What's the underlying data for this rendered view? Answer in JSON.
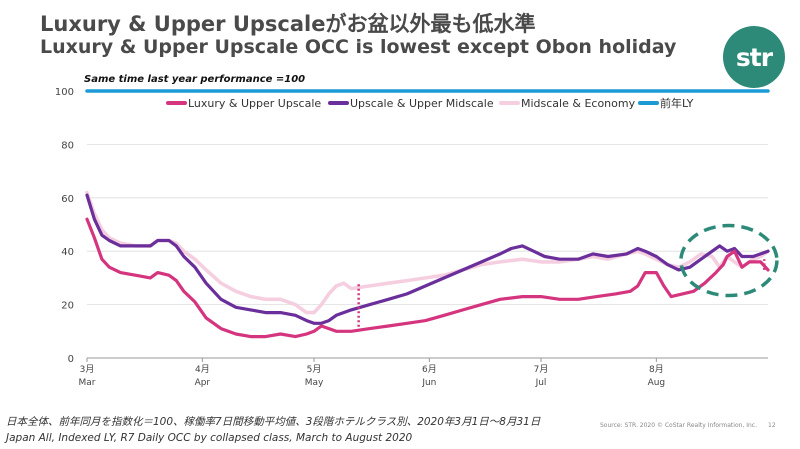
{
  "title_jp": "Luxury & Upper Upscaleがお盆以外最も低水準",
  "title_en": "Luxury & Upper Upscale OCC is lowest except Obon holiday",
  "logo_text": "str",
  "note": "Same time last year performance =100",
  "footer_jp": "日本全体、前年同月を指数化＝100、稼働率7日間移動平均値、3段階ホテルクラス別、2020年3月1日～8月31日",
  "footer_en": "Japan All, Indexed LY, R7 Daily OCC by collapsed class, March to August 2020",
  "source": "Source: STR. 2020 © CoStar Realty Information, Inc.",
  "page_number": "12",
  "colors": {
    "luxury": "#d4357e",
    "upscale": "#6a2f9b",
    "midscale": "#f5cfe0",
    "ly": "#1c9ad6",
    "annotation": "#2d8a78",
    "logo": "#2d8a78",
    "grid": "#dddddd"
  },
  "chart_data": {
    "type": "line",
    "title": "",
    "xlabel": "",
    "ylabel": "",
    "ylim": [
      0,
      100
    ],
    "yticks": [
      0,
      20,
      40,
      60,
      80,
      100
    ],
    "x_domain_days": [
      0,
      183
    ],
    "month_ticks": [
      {
        "day": 0,
        "top": "3月",
        "bottom": "Mar"
      },
      {
        "day": 31,
        "top": "4月",
        "bottom": "Apr"
      },
      {
        "day": 61,
        "top": "5月",
        "bottom": "May"
      },
      {
        "day": 92,
        "top": "6月",
        "bottom": "Jun"
      },
      {
        "day": 122,
        "top": "7月",
        "bottom": "Jul"
      },
      {
        "day": 153,
        "top": "8月",
        "bottom": "Aug"
      }
    ],
    "legend": [
      "Luxury & Upper Upscale",
      "Upscale & Upper Midscale",
      "Midscale & Economy",
      "前年LY"
    ],
    "legend_position": "top",
    "series": [
      {
        "name": "Luxury & Upper Upscale",
        "color_key": "luxury",
        "points": [
          [
            0,
            52
          ],
          [
            2,
            45
          ],
          [
            4,
            37
          ],
          [
            6,
            34
          ],
          [
            9,
            32
          ],
          [
            13,
            31
          ],
          [
            17,
            30
          ],
          [
            19,
            32
          ],
          [
            22,
            31
          ],
          [
            24,
            29
          ],
          [
            26,
            25
          ],
          [
            29,
            21
          ],
          [
            32,
            15
          ],
          [
            36,
            11
          ],
          [
            40,
            9
          ],
          [
            44,
            8
          ],
          [
            48,
            8
          ],
          [
            52,
            9
          ],
          [
            56,
            8
          ],
          [
            59,
            9
          ],
          [
            61,
            10
          ],
          [
            63,
            12
          ],
          [
            65,
            11
          ],
          [
            67,
            10
          ],
          [
            71,
            10
          ],
          [
            76,
            11
          ],
          [
            81,
            12
          ],
          [
            86,
            13
          ],
          [
            91,
            14
          ],
          [
            96,
            16
          ],
          [
            101,
            18
          ],
          [
            106,
            20
          ],
          [
            111,
            22
          ],
          [
            117,
            23
          ],
          [
            122,
            23
          ],
          [
            127,
            22
          ],
          [
            132,
            22
          ],
          [
            137,
            23
          ],
          [
            142,
            24
          ],
          [
            146,
            25
          ],
          [
            148,
            27
          ],
          [
            150,
            32
          ],
          [
            153,
            32
          ],
          [
            155,
            27
          ],
          [
            157,
            23
          ],
          [
            160,
            24
          ],
          [
            163,
            25
          ],
          [
            166,
            28
          ],
          [
            169,
            32
          ],
          [
            171,
            35
          ],
          [
            172,
            38
          ],
          [
            174,
            40
          ],
          [
            176,
            34
          ],
          [
            178,
            36
          ],
          [
            181,
            36
          ],
          [
            183,
            33
          ]
        ]
      },
      {
        "name": "Upscale & Upper Midscale",
        "color_key": "upscale",
        "points": [
          [
            0,
            61
          ],
          [
            2,
            52
          ],
          [
            4,
            46
          ],
          [
            6,
            44
          ],
          [
            9,
            42
          ],
          [
            13,
            42
          ],
          [
            17,
            42
          ],
          [
            19,
            44
          ],
          [
            22,
            44
          ],
          [
            24,
            42
          ],
          [
            26,
            38
          ],
          [
            29,
            34
          ],
          [
            32,
            28
          ],
          [
            36,
            22
          ],
          [
            40,
            19
          ],
          [
            44,
            18
          ],
          [
            48,
            17
          ],
          [
            52,
            17
          ],
          [
            56,
            16
          ],
          [
            59,
            14
          ],
          [
            61,
            13
          ],
          [
            63,
            13
          ],
          [
            65,
            14
          ],
          [
            67,
            16
          ],
          [
            71,
            18
          ],
          [
            76,
            20
          ],
          [
            81,
            22
          ],
          [
            86,
            24
          ],
          [
            91,
            27
          ],
          [
            96,
            30
          ],
          [
            101,
            33
          ],
          [
            106,
            36
          ],
          [
            111,
            39
          ],
          [
            114,
            41
          ],
          [
            117,
            42
          ],
          [
            120,
            40
          ],
          [
            123,
            38
          ],
          [
            127,
            37
          ],
          [
            132,
            37
          ],
          [
            136,
            39
          ],
          [
            140,
            38
          ],
          [
            145,
            39
          ],
          [
            148,
            41
          ],
          [
            150,
            40
          ],
          [
            153,
            38
          ],
          [
            156,
            35
          ],
          [
            159,
            33
          ],
          [
            162,
            34
          ],
          [
            165,
            37
          ],
          [
            168,
            40
          ],
          [
            170,
            42
          ],
          [
            172,
            40
          ],
          [
            174,
            41
          ],
          [
            176,
            38
          ],
          [
            179,
            38
          ],
          [
            181,
            39
          ],
          [
            183,
            40
          ]
        ]
      },
      {
        "name": "Midscale & Economy",
        "color_key": "midscale",
        "points": [
          [
            0,
            62
          ],
          [
            2,
            54
          ],
          [
            4,
            48
          ],
          [
            6,
            45
          ],
          [
            9,
            43
          ],
          [
            13,
            42
          ],
          [
            17,
            42
          ],
          [
            19,
            44
          ],
          [
            22,
            44
          ],
          [
            24,
            43
          ],
          [
            26,
            40
          ],
          [
            29,
            37
          ],
          [
            32,
            33
          ],
          [
            36,
            28
          ],
          [
            40,
            25
          ],
          [
            44,
            23
          ],
          [
            48,
            22
          ],
          [
            52,
            22
          ],
          [
            56,
            20
          ],
          [
            59,
            17
          ],
          [
            61,
            17
          ],
          [
            63,
            20
          ],
          [
            65,
            24
          ],
          [
            67,
            27
          ],
          [
            69,
            28
          ],
          [
            71,
            26
          ],
          [
            76,
            27
          ],
          [
            81,
            28
          ],
          [
            86,
            29
          ],
          [
            91,
            30
          ],
          [
            96,
            31
          ],
          [
            101,
            33
          ],
          [
            106,
            35
          ],
          [
            111,
            36
          ],
          [
            117,
            37
          ],
          [
            122,
            36
          ],
          [
            127,
            36
          ],
          [
            132,
            37
          ],
          [
            136,
            38
          ],
          [
            140,
            37
          ],
          [
            145,
            39
          ],
          [
            148,
            40
          ],
          [
            150,
            39
          ],
          [
            153,
            37
          ],
          [
            156,
            35
          ],
          [
            159,
            34
          ],
          [
            162,
            36
          ],
          [
            165,
            39
          ],
          [
            168,
            38
          ],
          [
            170,
            34
          ],
          [
            172,
            38
          ],
          [
            174,
            36
          ],
          [
            176,
            34
          ],
          [
            179,
            37
          ],
          [
            181,
            38
          ],
          [
            183,
            40
          ]
        ]
      },
      {
        "name": "前年LY",
        "color_key": "ly",
        "points": [
          [
            0,
            100
          ],
          [
            183,
            100
          ]
        ]
      }
    ],
    "markers": [
      {
        "type": "vertical-dotted",
        "day": 73,
        "from": 10,
        "to": 28,
        "color_key": "luxury"
      },
      {
        "type": "vertical-dotted",
        "day": 182,
        "from": 33,
        "to": 37,
        "color_key": "luxury"
      },
      {
        "type": "dashed-ellipse",
        "color_key": "annotation",
        "note": "Obon holiday"
      }
    ]
  }
}
